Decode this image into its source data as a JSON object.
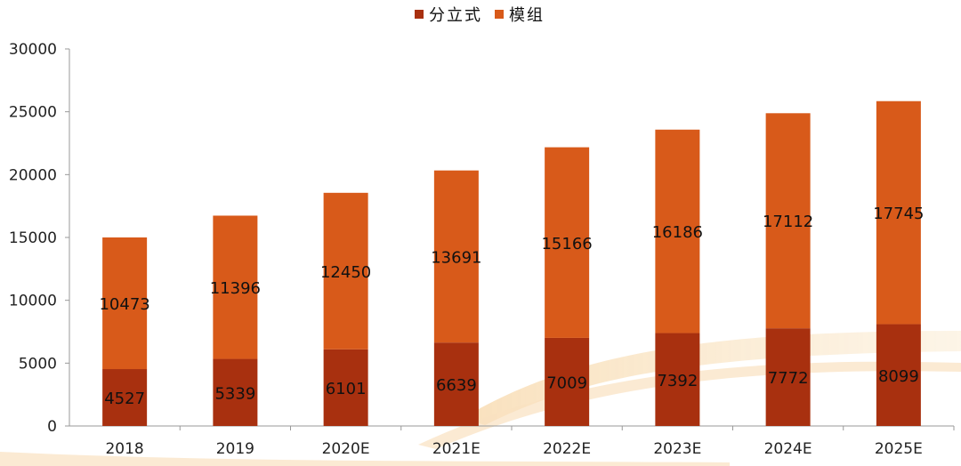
{
  "chart_data": {
    "type": "bar",
    "stacked": true,
    "categories": [
      "2018",
      "2019",
      "2020E",
      "2021E",
      "2022E",
      "2023E",
      "2024E",
      "2025E"
    ],
    "series": [
      {
        "name": "分立式",
        "color": "#a8300f",
        "values": [
          4527,
          5339,
          6101,
          6639,
          7009,
          7392,
          7772,
          8099
        ]
      },
      {
        "name": "模组",
        "color": "#d85a1a",
        "values": [
          10473,
          11396,
          12450,
          13691,
          15166,
          16186,
          17112,
          17745
        ]
      }
    ],
    "yticks": [
      0,
      5000,
      10000,
      15000,
      20000,
      25000,
      30000
    ],
    "ylim": [
      0,
      30000
    ],
    "legend_position": "top-center",
    "grid": false
  }
}
